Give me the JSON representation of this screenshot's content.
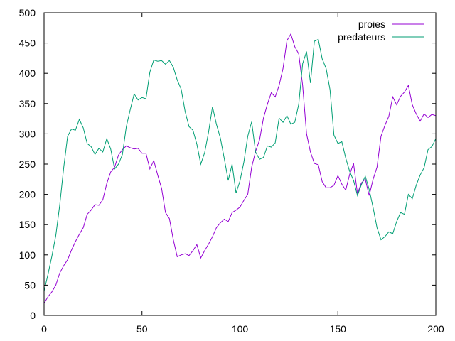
{
  "chart_data": {
    "type": "line",
    "title": "",
    "xlabel": "",
    "ylabel": "",
    "xlim": [
      0,
      200
    ],
    "ylim": [
      0,
      500
    ],
    "xticks": [
      0,
      50,
      100,
      150,
      200
    ],
    "yticks": [
      0,
      50,
      100,
      150,
      200,
      250,
      300,
      350,
      400,
      450,
      500
    ],
    "grid": false,
    "legend_position": "top-right",
    "series": [
      {
        "name": "proies",
        "color": "#9400d3",
        "x": [
          0,
          2,
          4,
          6,
          8,
          10,
          12,
          14,
          16,
          18,
          20,
          22,
          24,
          26,
          28,
          30,
          32,
          34,
          36,
          38,
          40,
          42,
          44,
          46,
          48,
          50,
          52,
          54,
          56,
          58,
          60,
          62,
          64,
          66,
          68,
          70,
          72,
          74,
          76,
          78,
          80,
          82,
          84,
          86,
          88,
          90,
          92,
          94,
          96,
          98,
          100,
          102,
          104,
          106,
          108,
          110,
          112,
          114,
          116,
          118,
          120,
          122,
          124,
          126,
          128,
          130,
          132,
          134,
          136,
          138,
          140,
          142,
          144,
          146,
          148,
          150,
          152,
          154,
          156,
          158,
          160,
          162,
          164,
          166,
          168,
          170,
          172,
          174,
          176,
          178,
          180,
          182,
          184,
          186,
          188,
          190,
          192,
          194,
          196,
          198,
          200
        ],
        "y": [
          20,
          31,
          39,
          50,
          70,
          82,
          92,
          108,
          122,
          134,
          145,
          167,
          174,
          183,
          182,
          191,
          218,
          237,
          245,
          265,
          274,
          280,
          277,
          275,
          276,
          268,
          268,
          242,
          256,
          232,
          210,
          170,
          160,
          125,
          97,
          100,
          102,
          99,
          107,
          117,
          95,
          107,
          118,
          130,
          145,
          153,
          159,
          155,
          170,
          174,
          179,
          190,
          200,
          245,
          271,
          290,
          326,
          349,
          368,
          361,
          380,
          408,
          454,
          465,
          444,
          432,
          380,
          300,
          270,
          251,
          249,
          221,
          211,
          211,
          215,
          231,
          217,
          207,
          233,
          251,
          201,
          219,
          225,
          198,
          225,
          245,
          296,
          314,
          329,
          361,
          348,
          362,
          369,
          380,
          348,
          333,
          321,
          333,
          327,
          332,
          330
        ]
      },
      {
        "name": "predateurs",
        "color": "#009e73",
        "x": [
          0,
          2,
          4,
          6,
          8,
          10,
          12,
          14,
          16,
          18,
          20,
          22,
          24,
          26,
          28,
          30,
          32,
          34,
          36,
          38,
          40,
          42,
          44,
          46,
          48,
          50,
          52,
          54,
          56,
          58,
          60,
          62,
          64,
          66,
          68,
          70,
          72,
          74,
          76,
          78,
          80,
          82,
          84,
          86,
          88,
          90,
          92,
          94,
          96,
          98,
          100,
          102,
          104,
          106,
          108,
          110,
          112,
          114,
          116,
          118,
          120,
          122,
          124,
          126,
          128,
          130,
          132,
          134,
          136,
          138,
          140,
          142,
          144,
          146,
          148,
          150,
          152,
          154,
          156,
          158,
          160,
          162,
          164,
          166,
          168,
          170,
          172,
          174,
          176,
          178,
          180,
          182,
          184,
          186,
          188,
          190,
          192,
          194,
          196,
          198,
          200
        ],
        "y": [
          40,
          68,
          98,
          132,
          182,
          243,
          296,
          308,
          306,
          324,
          310,
          284,
          279,
          266,
          276,
          270,
          292,
          275,
          242,
          250,
          266,
          312,
          340,
          366,
          356,
          360,
          358,
          402,
          422,
          420,
          421,
          415,
          421,
          410,
          389,
          374,
          337,
          312,
          306,
          283,
          250,
          269,
          303,
          345,
          316,
          293,
          259,
          223,
          250,
          202,
          222,
          253,
          296,
          320,
          270,
          258,
          261,
          280,
          278,
          285,
          326,
          319,
          330,
          316,
          319,
          349,
          416,
          436,
          384,
          453,
          456,
          424,
          408,
          373,
          298,
          284,
          287,
          260,
          238,
          223,
          198,
          216,
          230,
          208,
          178,
          145,
          125,
          130,
          138,
          135,
          155,
          170,
          167,
          200,
          193,
          215,
          232,
          244,
          274,
          279,
          292
        ]
      }
    ]
  }
}
